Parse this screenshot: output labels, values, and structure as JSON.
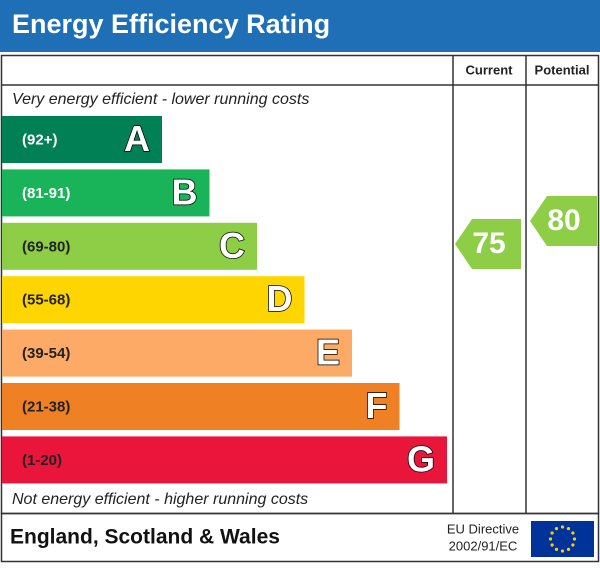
{
  "header": {
    "title": "Energy Efficiency Rating"
  },
  "columns": [
    "Current",
    "Potential"
  ],
  "top_note": "Very energy efficient - lower running costs",
  "bottom_note": "Not energy efficient - higher running costs",
  "bands": [
    {
      "range": "(92+)",
      "letter": "A",
      "color": "#008054"
    },
    {
      "range": "(81-91)",
      "letter": "B",
      "color": "#19b459"
    },
    {
      "range": "(69-80)",
      "letter": "C",
      "color": "#8dce46"
    },
    {
      "range": "(55-68)",
      "letter": "D",
      "color": "#ffd500"
    },
    {
      "range": "(39-54)",
      "letter": "E",
      "color": "#fcaa65"
    },
    {
      "range": "(21-38)",
      "letter": "F",
      "color": "#ef8023"
    },
    {
      "range": "(1-20)",
      "letter": "G",
      "color": "#e9153b"
    }
  ],
  "current": "75",
  "potential": "80",
  "footer": {
    "region": "England, Scotland & Wales",
    "directive": [
      "EU Directive",
      "2002/91/EC"
    ]
  }
}
